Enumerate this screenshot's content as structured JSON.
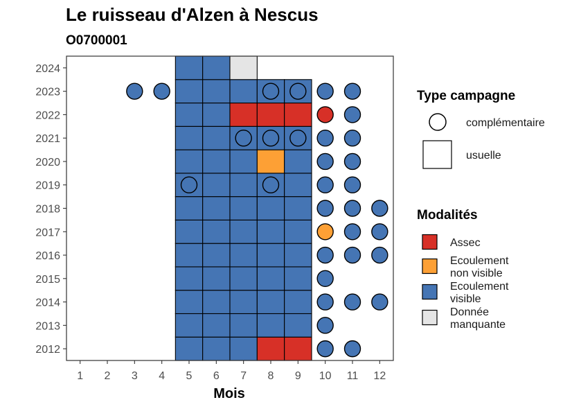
{
  "chart_data": {
    "type": "heatmap",
    "title": "Le ruisseau d'Alzen à Nescus",
    "subtitle": "O0700001",
    "xlabel": "Mois",
    "ylabel": "",
    "x_ticks": [
      "1",
      "2",
      "3",
      "4",
      "5",
      "6",
      "7",
      "8",
      "9",
      "10",
      "11",
      "12"
    ],
    "y_ticks": [
      "2012",
      "2013",
      "2014",
      "2015",
      "2016",
      "2017",
      "2018",
      "2019",
      "2020",
      "2021",
      "2022",
      "2023",
      "2024"
    ],
    "xlim": [
      0.5,
      12.5
    ],
    "ylim": [
      2011.5,
      2024.5
    ],
    "legend_campaign": {
      "title": "Type campagne",
      "items": [
        {
          "shape": "circle",
          "label": "complémentaire"
        },
        {
          "shape": "square",
          "label": "usuelle"
        }
      ]
    },
    "legend_modalites": {
      "title": "Modalités",
      "items": [
        {
          "key": "assec",
          "label_lines": [
            "Assec"
          ],
          "color": "#d73027"
        },
        {
          "key": "enonvis",
          "label_lines": [
            "Ecoulement",
            "non visible"
          ],
          "color": "#fda035"
        },
        {
          "key": "evis",
          "label_lines": [
            "Ecoulement",
            "visible"
          ],
          "color": "#4575b4"
        },
        {
          "key": "manq",
          "label_lines": [
            "Donnée",
            "manquante"
          ],
          "color": "#e5e5e5"
        }
      ]
    },
    "usuelle": [
      {
        "year": 2012,
        "cells": [
          [
            5,
            "evis"
          ],
          [
            6,
            "evis"
          ],
          [
            7,
            "evis"
          ],
          [
            8,
            "assec"
          ],
          [
            9,
            "assec"
          ]
        ]
      },
      {
        "year": 2013,
        "cells": [
          [
            5,
            "evis"
          ],
          [
            6,
            "evis"
          ],
          [
            7,
            "evis"
          ],
          [
            8,
            "evis"
          ],
          [
            9,
            "evis"
          ]
        ]
      },
      {
        "year": 2014,
        "cells": [
          [
            5,
            "evis"
          ],
          [
            6,
            "evis"
          ],
          [
            7,
            "evis"
          ],
          [
            8,
            "evis"
          ],
          [
            9,
            "evis"
          ]
        ]
      },
      {
        "year": 2015,
        "cells": [
          [
            5,
            "evis"
          ],
          [
            6,
            "evis"
          ],
          [
            7,
            "evis"
          ],
          [
            8,
            "evis"
          ],
          [
            9,
            "evis"
          ]
        ]
      },
      {
        "year": 2016,
        "cells": [
          [
            5,
            "evis"
          ],
          [
            6,
            "evis"
          ],
          [
            7,
            "evis"
          ],
          [
            8,
            "evis"
          ],
          [
            9,
            "evis"
          ]
        ]
      },
      {
        "year": 2017,
        "cells": [
          [
            5,
            "evis"
          ],
          [
            6,
            "evis"
          ],
          [
            7,
            "evis"
          ],
          [
            8,
            "evis"
          ],
          [
            9,
            "evis"
          ]
        ]
      },
      {
        "year": 2018,
        "cells": [
          [
            5,
            "evis"
          ],
          [
            6,
            "evis"
          ],
          [
            7,
            "evis"
          ],
          [
            8,
            "evis"
          ],
          [
            9,
            "evis"
          ]
        ]
      },
      {
        "year": 2019,
        "cells": [
          [
            5,
            "evis"
          ],
          [
            6,
            "evis"
          ],
          [
            7,
            "evis"
          ],
          [
            8,
            "evis"
          ],
          [
            9,
            "evis"
          ]
        ]
      },
      {
        "year": 2020,
        "cells": [
          [
            5,
            "evis"
          ],
          [
            6,
            "evis"
          ],
          [
            7,
            "evis"
          ],
          [
            8,
            "enonvis"
          ],
          [
            9,
            "evis"
          ]
        ]
      },
      {
        "year": 2021,
        "cells": [
          [
            5,
            "evis"
          ],
          [
            6,
            "evis"
          ],
          [
            7,
            "evis"
          ],
          [
            8,
            "evis"
          ],
          [
            9,
            "evis"
          ]
        ]
      },
      {
        "year": 2022,
        "cells": [
          [
            5,
            "evis"
          ],
          [
            6,
            "evis"
          ],
          [
            7,
            "assec"
          ],
          [
            8,
            "assec"
          ],
          [
            9,
            "assec"
          ]
        ]
      },
      {
        "year": 2023,
        "cells": [
          [
            5,
            "evis"
          ],
          [
            6,
            "evis"
          ],
          [
            7,
            "evis"
          ],
          [
            8,
            "evis"
          ],
          [
            9,
            "evis"
          ]
        ]
      },
      {
        "year": 2024,
        "cells": [
          [
            5,
            "evis"
          ],
          [
            6,
            "evis"
          ],
          [
            7,
            "manq"
          ]
        ]
      }
    ],
    "complementaire": [
      {
        "year": 2012,
        "cells": [
          [
            10,
            "evis"
          ],
          [
            11,
            "evis"
          ]
        ]
      },
      {
        "year": 2013,
        "cells": [
          [
            10,
            "evis"
          ]
        ]
      },
      {
        "year": 2014,
        "cells": [
          [
            10,
            "evis"
          ],
          [
            11,
            "evis"
          ],
          [
            12,
            "evis"
          ]
        ]
      },
      {
        "year": 2015,
        "cells": [
          [
            10,
            "evis"
          ]
        ]
      },
      {
        "year": 2016,
        "cells": [
          [
            10,
            "evis"
          ],
          [
            11,
            "evis"
          ],
          [
            12,
            "evis"
          ]
        ]
      },
      {
        "year": 2017,
        "cells": [
          [
            10,
            "enonvis"
          ],
          [
            11,
            "evis"
          ],
          [
            12,
            "evis"
          ]
        ]
      },
      {
        "year": 2018,
        "cells": [
          [
            10,
            "evis"
          ],
          [
            11,
            "evis"
          ],
          [
            12,
            "evis"
          ]
        ]
      },
      {
        "year": 2019,
        "cells": [
          [
            5,
            "evis"
          ],
          [
            8,
            "evis"
          ],
          [
            10,
            "evis"
          ],
          [
            11,
            "evis"
          ]
        ]
      },
      {
        "year": 2020,
        "cells": [
          [
            10,
            "evis"
          ],
          [
            11,
            "evis"
          ]
        ]
      },
      {
        "year": 2021,
        "cells": [
          [
            7,
            "evis"
          ],
          [
            8,
            "evis"
          ],
          [
            9,
            "evis"
          ],
          [
            10,
            "evis"
          ],
          [
            11,
            "evis"
          ]
        ]
      },
      {
        "year": 2022,
        "cells": [
          [
            10,
            "assec"
          ],
          [
            11,
            "evis"
          ]
        ]
      },
      {
        "year": 2023,
        "cells": [
          [
            3,
            "evis"
          ],
          [
            4,
            "evis"
          ],
          [
            8,
            "evis"
          ],
          [
            9,
            "evis"
          ],
          [
            10,
            "evis"
          ],
          [
            11,
            "evis"
          ]
        ]
      }
    ],
    "grid": false
  }
}
